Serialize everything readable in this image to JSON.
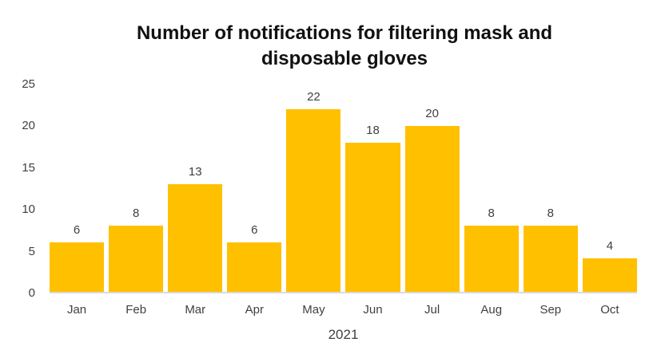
{
  "chart_data": {
    "type": "bar",
    "title": "Number of notifications for filtering mask and disposable gloves",
    "categories": [
      "Jan",
      "Feb",
      "Mar",
      "Apr",
      "May",
      "Jun",
      "Jul",
      "Aug",
      "Sep",
      "Oct"
    ],
    "values": [
      6,
      8,
      13,
      6,
      22,
      18,
      20,
      8,
      8,
      4
    ],
    "xlabel": "2021",
    "ylabel": "",
    "ylim": [
      0,
      25
    ],
    "yticks": [
      0,
      5,
      10,
      15,
      20,
      25
    ],
    "grid": false,
    "legend_position": "none",
    "data_labels": true
  },
  "colors": {
    "bar": "#FFC000",
    "title_text": "#111111",
    "axis_text": "#404040",
    "axis_line": "#D9D9D9",
    "background": "#FFFFFF"
  }
}
